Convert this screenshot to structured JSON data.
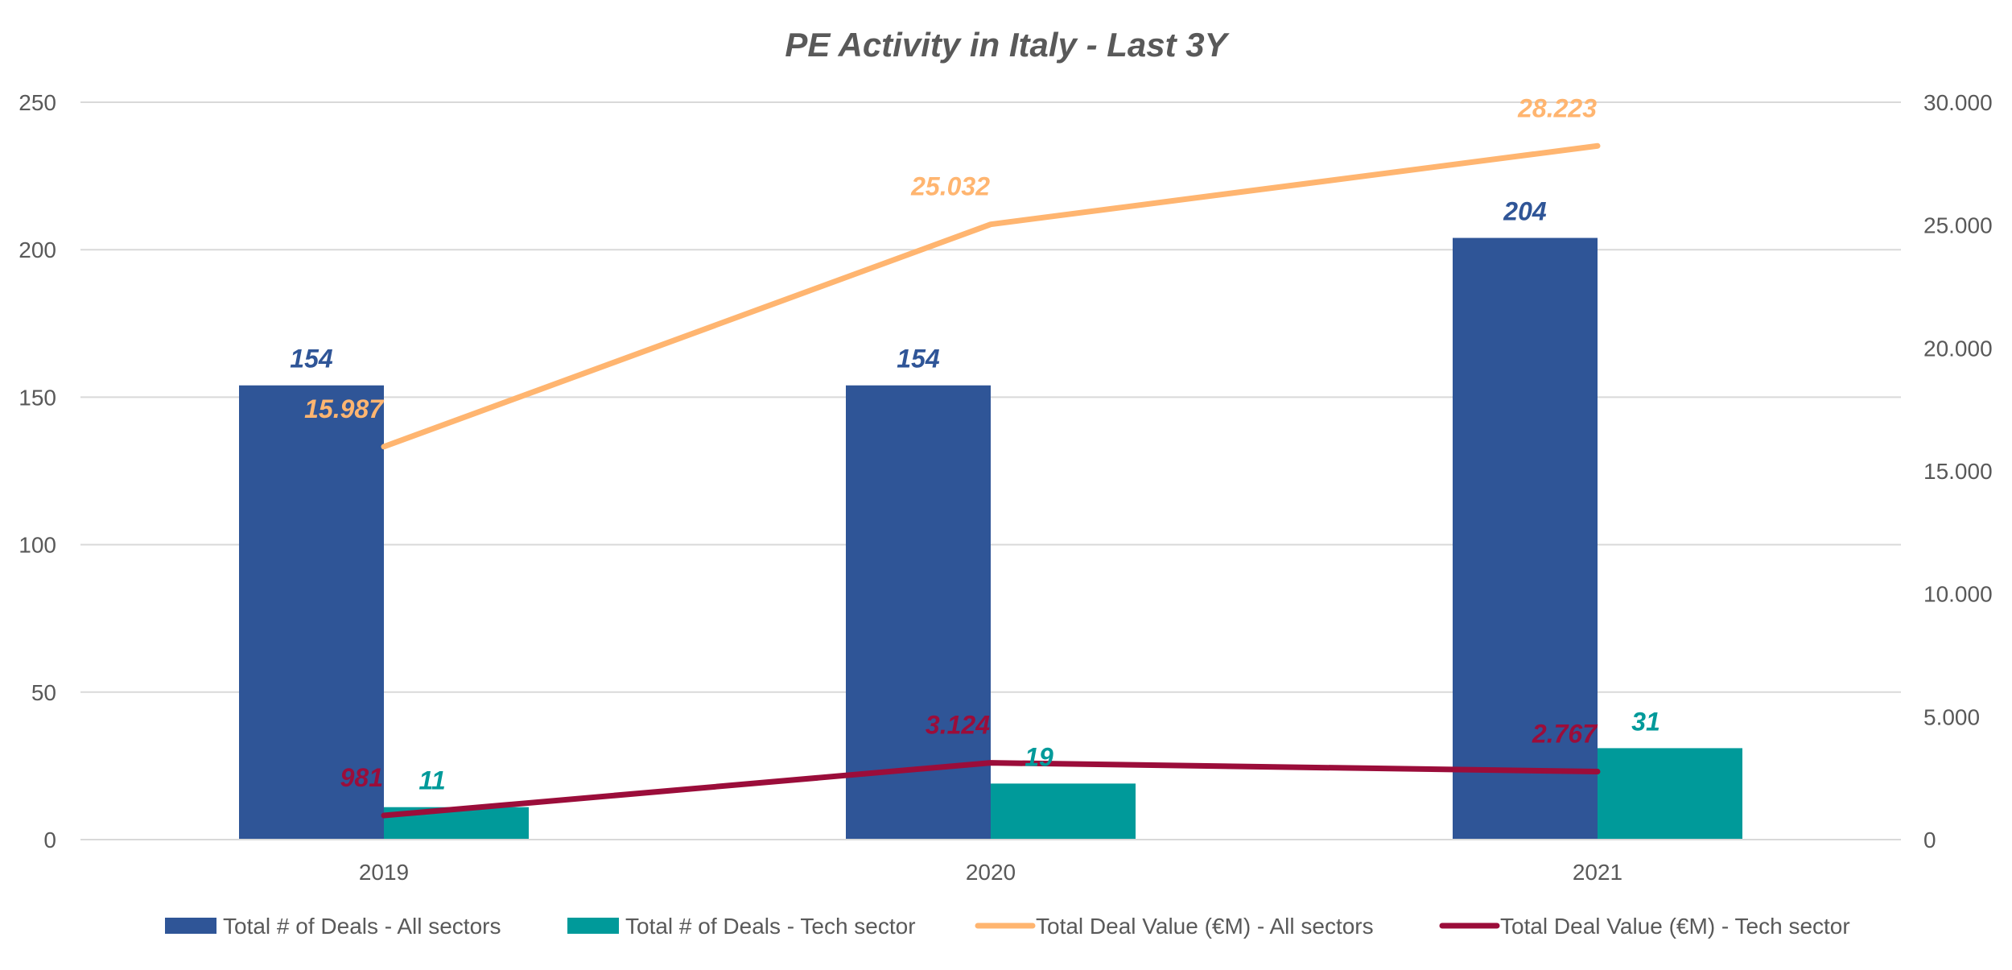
{
  "chart_data": {
    "type": "bar",
    "title": "PE Activity in Italy  - Last 3Y",
    "categories": [
      "2019",
      "2020",
      "2021"
    ],
    "y_left": {
      "range": [
        0,
        250
      ],
      "ticks": [
        0,
        50,
        100,
        150,
        200,
        250
      ],
      "tick_labels": [
        "0",
        "50",
        "100",
        "150",
        "200",
        "250"
      ]
    },
    "y_right": {
      "range": [
        0,
        30000
      ],
      "ticks": [
        0,
        5000,
        10000,
        15000,
        20000,
        25000,
        30000
      ],
      "tick_labels": [
        "0",
        "5.000",
        "10.000",
        "15.000",
        "20.000",
        "25.000",
        "30.000"
      ]
    },
    "grid": true,
    "legend_position": "bottom",
    "series": [
      {
        "name": "Total # of Deals - All sectors",
        "kind": "bar",
        "axis": "left",
        "color": "#2F5597",
        "values": [
          154,
          154,
          204
        ],
        "labels": [
          "154",
          "154",
          "204"
        ]
      },
      {
        "name": "Total # of Deals - Tech sector",
        "kind": "bar",
        "axis": "left",
        "color": "#009A9A",
        "values": [
          11,
          19,
          31
        ],
        "labels": [
          "11",
          "19",
          "31"
        ]
      },
      {
        "name": "Total Deal Value (€M) - All sectors",
        "kind": "line",
        "axis": "right",
        "color": "#FFB570",
        "values": [
          15987,
          25032,
          28223
        ],
        "labels": [
          "15.987",
          "25.032",
          "28.223"
        ]
      },
      {
        "name": "Total Deal Value (€M) - Tech sector",
        "kind": "line",
        "axis": "right",
        "color": "#9B0D3A",
        "values": [
          981,
          3124,
          2767
        ],
        "labels": [
          "981",
          "3.124",
          "2.767"
        ]
      }
    ]
  }
}
